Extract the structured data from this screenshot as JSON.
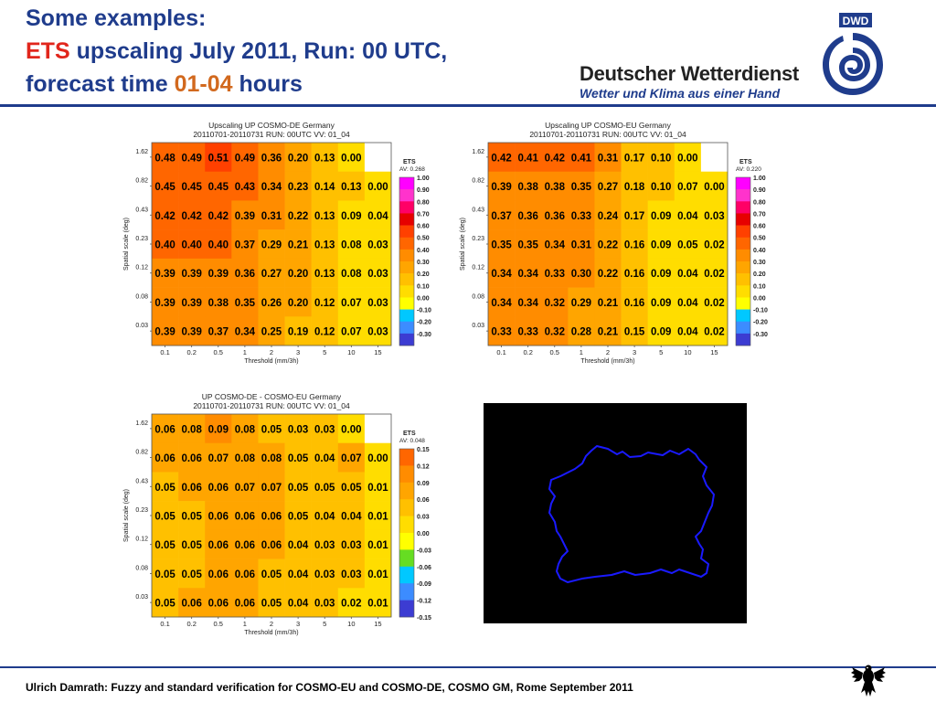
{
  "slide": {
    "title_line1": "Some examples:",
    "title_line2_ets": "ETS",
    "title_line2_rest": " upscaling July 2011, Run: 00 UTC,",
    "title_line3_a": "forecast time ",
    "title_line3_b": "01-04",
    "title_line3_c": " hours",
    "logo_badge": "DWD",
    "logo_name": "Deutscher Wetterdienst",
    "logo_tagline": "Wetter und Klima aus einer Hand",
    "footer": "Ulrich Damrath: Fuzzy and standard verification for COSMO-EU and COSMO-DE, COSMO GM, Rome September 2011"
  },
  "colors": {
    "title_blue": "#1f3c8c",
    "title_red": "#e1261c",
    "title_orange": "#d2691e",
    "rule_blue": "#1f3c8c",
    "map_background": "#000000",
    "map_outline": "#1a1aff"
  },
  "chart_data": [
    {
      "type": "heatmap",
      "title_line1": "Upscaling UP COSMO-DE Germany",
      "title_line2": "20110701-20110731  RUN: 00UTC  VV: 01_04",
      "xlabel": "Threshold (mm/3h)",
      "ylabel": "Spatial scale (deg)",
      "x_categories": [
        "0.1",
        "0.2",
        "0.5",
        "1",
        "2",
        "3",
        "5",
        "10",
        "15"
      ],
      "y_categories": [
        "1.62",
        "0.82",
        "0.43",
        "0.23",
        "0.12",
        "0.08",
        "0.03"
      ],
      "values": [
        [
          0.48,
          0.49,
          0.51,
          0.49,
          0.36,
          0.2,
          0.13,
          0.0,
          null
        ],
        [
          0.45,
          0.45,
          0.45,
          0.43,
          0.34,
          0.23,
          0.14,
          0.13,
          0.0
        ],
        [
          0.42,
          0.42,
          0.42,
          0.39,
          0.31,
          0.22,
          0.13,
          0.09,
          0.04
        ],
        [
          0.4,
          0.4,
          0.4,
          0.37,
          0.29,
          0.21,
          0.13,
          0.08,
          0.03
        ],
        [
          0.39,
          0.39,
          0.39,
          0.36,
          0.27,
          0.2,
          0.13,
          0.08,
          0.03
        ],
        [
          0.39,
          0.39,
          0.38,
          0.35,
          0.26,
          0.2,
          0.12,
          0.07,
          0.03
        ],
        [
          0.39,
          0.39,
          0.37,
          0.34,
          0.25,
          0.19,
          0.12,
          0.07,
          0.03
        ]
      ],
      "value_labels": [
        [
          "0.48",
          "0.49",
          "0.51",
          "0.49",
          "0.36",
          "0.20",
          "0.13",
          "0.00",
          ""
        ],
        [
          "0.45",
          "0.45",
          "0.45",
          "0.43",
          "0.34",
          "0.23",
          "0.14",
          "0.13",
          "0.00"
        ],
        [
          "0.42",
          "0.42",
          "0.42",
          "0.39",
          "0.31",
          "0.22",
          "0.13",
          "0.09",
          "0.04"
        ],
        [
          "0.40",
          "0.40",
          "0.40",
          "0.37",
          "0.29",
          "0.21",
          "0.13",
          "0.08",
          "0.03"
        ],
        [
          "0.39",
          "0.39",
          "0.39",
          "0.36",
          "0.27",
          "0.20",
          "0.13",
          "0.08",
          "0.03"
        ],
        [
          "0.39",
          "0.39",
          "0.38",
          "0.35",
          "0.26",
          "0.20",
          "0.12",
          "0.07",
          "0.03"
        ],
        [
          "0.39",
          "0.39",
          "0.37",
          "0.34",
          "0.25",
          "0.19",
          "0.12",
          "0.07",
          "0.03"
        ]
      ],
      "legend_title": "ETS",
      "legend_subtitle": "AV: 0.268",
      "legend_labels": [
        "1.00",
        "0.90",
        "0.80",
        "0.70",
        "0.60",
        "0.50",
        "0.40",
        "0.30",
        "0.20",
        "0.10",
        "0.00",
        "-0.10",
        "-0.20",
        "-0.30"
      ],
      "legend_colors": [
        "#ff00ff",
        "#ff33cc",
        "#ff0066",
        "#e60000",
        "#ff4000",
        "#ff6600",
        "#ff8c00",
        "#ffa500",
        "#ffc000",
        "#ffdd00",
        "#ffff00",
        "#00c8ff",
        "#3c8cff",
        "#3c3cd2"
      ]
    },
    {
      "type": "heatmap",
      "title_line1": "Upscaling UP COSMO-EU Germany",
      "title_line2": "20110701-20110731  RUN: 00UTC  VV: 01_04",
      "xlabel": "Threshold (mm/3h)",
      "ylabel": "Spatial scale (deg)",
      "x_categories": [
        "0.1",
        "0.2",
        "0.5",
        "1",
        "2",
        "3",
        "5",
        "10",
        "15"
      ],
      "y_categories": [
        "1.62",
        "0.82",
        "0.43",
        "0.23",
        "0.12",
        "0.08",
        "0.03"
      ],
      "values": [
        [
          0.42,
          0.41,
          0.42,
          0.41,
          0.31,
          0.17,
          0.1,
          0.0,
          null
        ],
        [
          0.39,
          0.38,
          0.38,
          0.35,
          0.27,
          0.18,
          0.1,
          0.07,
          0.0
        ],
        [
          0.37,
          0.36,
          0.36,
          0.33,
          0.24,
          0.17,
          0.09,
          0.04,
          0.03
        ],
        [
          0.35,
          0.35,
          0.34,
          0.31,
          0.22,
          0.16,
          0.09,
          0.05,
          0.02
        ],
        [
          0.34,
          0.34,
          0.33,
          0.3,
          0.22,
          0.16,
          0.09,
          0.04,
          0.02
        ],
        [
          0.34,
          0.34,
          0.32,
          0.29,
          0.21,
          0.16,
          0.09,
          0.04,
          0.02
        ],
        [
          0.33,
          0.33,
          0.32,
          0.28,
          0.21,
          0.15,
          0.09,
          0.04,
          0.02
        ]
      ],
      "value_labels": [
        [
          "0.42",
          "0.41",
          "0.42",
          "0.41",
          "0.31",
          "0.17",
          "0.10",
          "0.00",
          ""
        ],
        [
          "0.39",
          "0.38",
          "0.38",
          "0.35",
          "0.27",
          "0.18",
          "0.10",
          "0.07",
          "0.00"
        ],
        [
          "0.37",
          "0.36",
          "0.36",
          "0.33",
          "0.24",
          "0.17",
          "0.09",
          "0.04",
          "0.03"
        ],
        [
          "0.35",
          "0.35",
          "0.34",
          "0.31",
          "0.22",
          "0.16",
          "0.09",
          "0.05",
          "0.02"
        ],
        [
          "0.34",
          "0.34",
          "0.33",
          "0.30",
          "0.22",
          "0.16",
          "0.09",
          "0.04",
          "0.02"
        ],
        [
          "0.34",
          "0.34",
          "0.32",
          "0.29",
          "0.21",
          "0.16",
          "0.09",
          "0.04",
          "0.02"
        ],
        [
          "0.33",
          "0.33",
          "0.32",
          "0.28",
          "0.21",
          "0.15",
          "0.09",
          "0.04",
          "0.02"
        ]
      ],
      "legend_title": "ETS",
      "legend_subtitle": "AV: 0.220",
      "legend_labels": [
        "1.00",
        "0.90",
        "0.80",
        "0.70",
        "0.60",
        "0.50",
        "0.40",
        "0.30",
        "0.20",
        "0.10",
        "0.00",
        "-0.10",
        "-0.20",
        "-0.30"
      ],
      "legend_colors": [
        "#ff00ff",
        "#ff33cc",
        "#ff0066",
        "#e60000",
        "#ff4000",
        "#ff6600",
        "#ff8c00",
        "#ffa500",
        "#ffc000",
        "#ffdd00",
        "#ffff00",
        "#00c8ff",
        "#3c8cff",
        "#3c3cd2"
      ]
    },
    {
      "type": "heatmap",
      "title_line1": "UP COSMO-DE - COSMO-EU Germany",
      "title_line2": "20110701-20110731  RUN: 00UTC  VV: 01_04",
      "xlabel": "Threshold (mm/3h)",
      "ylabel": "Spatial scale (deg)",
      "x_categories": [
        "0.1",
        "0.2",
        "0.5",
        "1",
        "2",
        "3",
        "5",
        "10",
        "15"
      ],
      "y_categories": [
        "1.62",
        "0.82",
        "0.43",
        "0.23",
        "0.12",
        "0.08",
        "0.03"
      ],
      "values": [
        [
          0.06,
          0.08,
          0.09,
          0.08,
          0.05,
          0.03,
          0.03,
          0.0,
          null
        ],
        [
          0.06,
          0.06,
          0.07,
          0.08,
          0.08,
          0.05,
          0.04,
          0.07,
          0.0
        ],
        [
          0.05,
          0.06,
          0.06,
          0.07,
          0.07,
          0.05,
          0.05,
          0.05,
          0.01
        ],
        [
          0.05,
          0.05,
          0.06,
          0.06,
          0.06,
          0.05,
          0.04,
          0.04,
          0.01
        ],
        [
          0.05,
          0.05,
          0.06,
          0.06,
          0.06,
          0.04,
          0.03,
          0.03,
          0.01
        ],
        [
          0.05,
          0.05,
          0.06,
          0.06,
          0.05,
          0.04,
          0.03,
          0.03,
          0.01
        ],
        [
          0.05,
          0.06,
          0.06,
          0.06,
          0.05,
          0.04,
          0.03,
          0.02,
          0.01
        ]
      ],
      "value_labels": [
        [
          "0.06",
          "0.08",
          "0.09",
          "0.08",
          "0.05",
          "0.03",
          "0.03",
          "0.00",
          ""
        ],
        [
          "0.06",
          "0.06",
          "0.07",
          "0.08",
          "0.08",
          "0.05",
          "0.04",
          "0.07",
          "0.00"
        ],
        [
          "0.05",
          "0.06",
          "0.06",
          "0.07",
          "0.07",
          "0.05",
          "0.05",
          "0.05",
          "0.01"
        ],
        [
          "0.05",
          "0.05",
          "0.06",
          "0.06",
          "0.06",
          "0.05",
          "0.04",
          "0.04",
          "0.01"
        ],
        [
          "0.05",
          "0.05",
          "0.06",
          "0.06",
          "0.06",
          "0.04",
          "0.03",
          "0.03",
          "0.01"
        ],
        [
          "0.05",
          "0.05",
          "0.06",
          "0.06",
          "0.05",
          "0.04",
          "0.03",
          "0.03",
          "0.01"
        ],
        [
          "0.05",
          "0.06",
          "0.06",
          "0.06",
          "0.05",
          "0.04",
          "0.03",
          "0.02",
          "0.01"
        ]
      ],
      "legend_title": "ETS",
      "legend_subtitle": "AV: 0.048",
      "legend_labels": [
        "0.15",
        "0.12",
        "0.09",
        "0.06",
        "0.03",
        "0.00",
        "-0.03",
        "-0.06",
        "-0.09",
        "-0.12",
        "-0.15"
      ],
      "legend_colors": [
        "#ff6600",
        "#ff8c00",
        "#ffa500",
        "#ffc000",
        "#ffdd00",
        "#ffff00",
        "#66dd22",
        "#00c8ff",
        "#3c8cff",
        "#3c3cd2"
      ]
    }
  ]
}
